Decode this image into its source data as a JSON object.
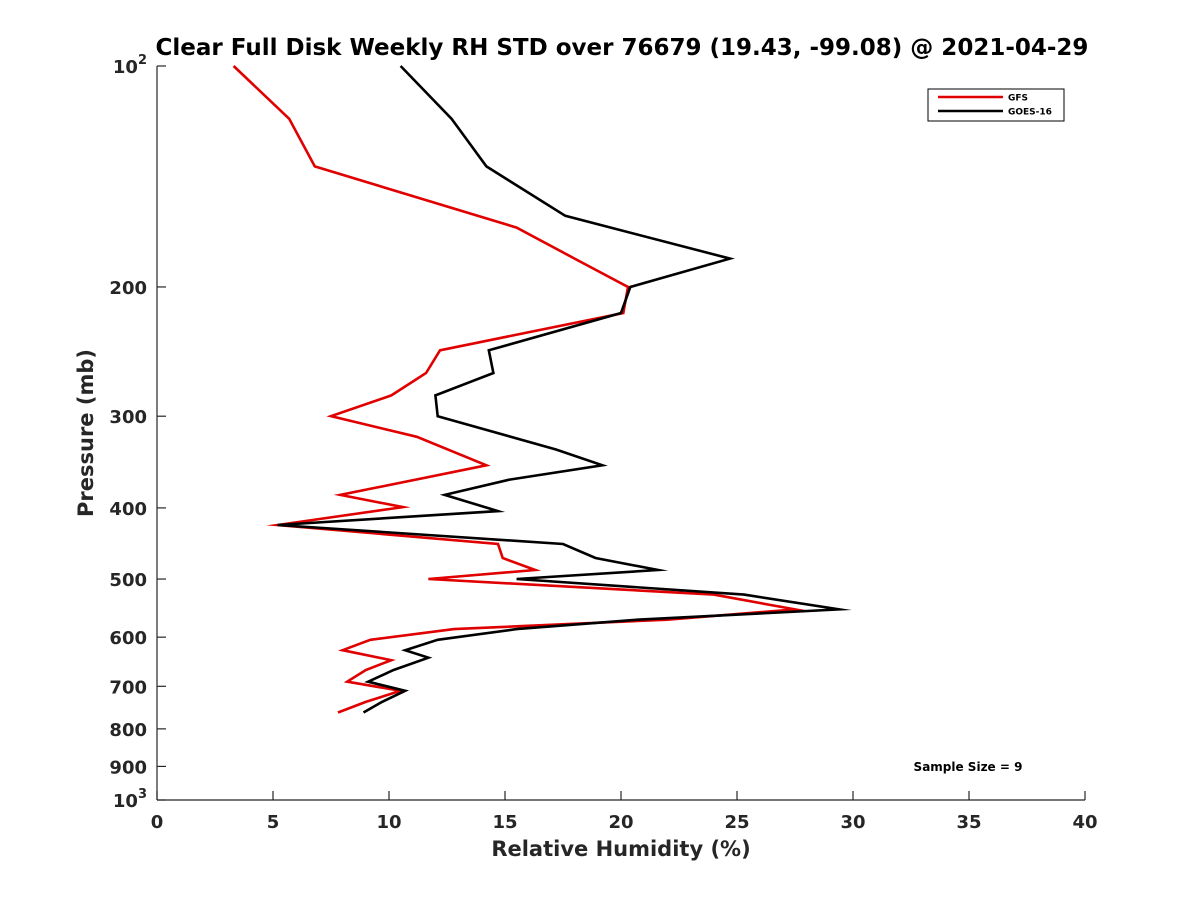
{
  "chart_data": {
    "type": "line",
    "title": "Clear Full Disk Weekly RH STD over 76679 (19.43, -99.08) @ 2021-04-29",
    "xlabel": "Relative Humidity (%)",
    "ylabel": "Pressure (mb)",
    "xlim": [
      0,
      40
    ],
    "ylim": [
      100,
      1000
    ],
    "y_scale": "log",
    "y_reversed": true,
    "grid": false,
    "legend_position": "top-right",
    "x_ticks": [
      "0",
      "5",
      "10",
      "15",
      "20",
      "25",
      "30",
      "35",
      "40"
    ],
    "y_ticks": [
      {
        "value": 100,
        "label": "10",
        "exp": "2"
      },
      {
        "value": 200,
        "label": "200"
      },
      {
        "value": 300,
        "label": "300"
      },
      {
        "value": 400,
        "label": "400"
      },
      {
        "value": 500,
        "label": "500"
      },
      {
        "value": 600,
        "label": "600"
      },
      {
        "value": 700,
        "label": "700"
      },
      {
        "value": 800,
        "label": "800"
      },
      {
        "value": 900,
        "label": "900"
      },
      {
        "value": 1000,
        "label": "10",
        "exp": "3"
      }
    ],
    "series": [
      {
        "name": "GFS",
        "color": "#e00000",
        "points": [
          [
            3.3,
            100
          ],
          [
            5.7,
            118
          ],
          [
            6.8,
            137
          ],
          [
            15.5,
            166
          ],
          [
            18.0,
            183
          ],
          [
            20.3,
            200
          ],
          [
            20.1,
            217
          ],
          [
            12.2,
            244
          ],
          [
            11.6,
            262
          ],
          [
            10.1,
            281
          ],
          [
            7.5,
            300
          ],
          [
            11.2,
            320
          ],
          [
            14.2,
            350
          ],
          [
            7.9,
            384
          ],
          [
            10.6,
            399
          ],
          [
            5.2,
            422
          ],
          [
            14.7,
            448
          ],
          [
            14.9,
            468
          ],
          [
            16.3,
            486
          ],
          [
            11.7,
            500
          ],
          [
            24.0,
            525
          ],
          [
            27.5,
            550
          ],
          [
            22.0,
            568
          ],
          [
            12.8,
            585
          ],
          [
            9.2,
            605
          ],
          [
            8.0,
            625
          ],
          [
            10.1,
            645
          ],
          [
            9.0,
            665
          ],
          [
            8.2,
            690
          ],
          [
            10.5,
            710
          ],
          [
            9.0,
            735
          ],
          [
            7.8,
            760
          ]
        ]
      },
      {
        "name": "GOES-16",
        "color": "#000000",
        "points": [
          [
            10.5,
            100
          ],
          [
            12.7,
            118
          ],
          [
            14.2,
            137
          ],
          [
            17.6,
            160
          ],
          [
            24.7,
            183
          ],
          [
            20.4,
            200
          ],
          [
            20.0,
            217
          ],
          [
            14.3,
            244
          ],
          [
            14.5,
            262
          ],
          [
            12.0,
            281
          ],
          [
            12.1,
            300
          ],
          [
            17.2,
            333
          ],
          [
            19.2,
            350
          ],
          [
            15.2,
            366
          ],
          [
            12.4,
            384
          ],
          [
            14.7,
            404
          ],
          [
            5.2,
            422
          ],
          [
            17.5,
            448
          ],
          [
            18.9,
            468
          ],
          [
            21.6,
            486
          ],
          [
            15.5,
            500
          ],
          [
            25.3,
            525
          ],
          [
            29.4,
            550
          ],
          [
            20.7,
            568
          ],
          [
            15.5,
            585
          ],
          [
            12.1,
            605
          ],
          [
            10.7,
            625
          ],
          [
            11.7,
            640
          ],
          [
            10.2,
            665
          ],
          [
            9.1,
            690
          ],
          [
            10.7,
            710
          ],
          [
            9.7,
            735
          ],
          [
            8.9,
            760
          ]
        ]
      }
    ],
    "annotation": "Sample Size = 9"
  }
}
